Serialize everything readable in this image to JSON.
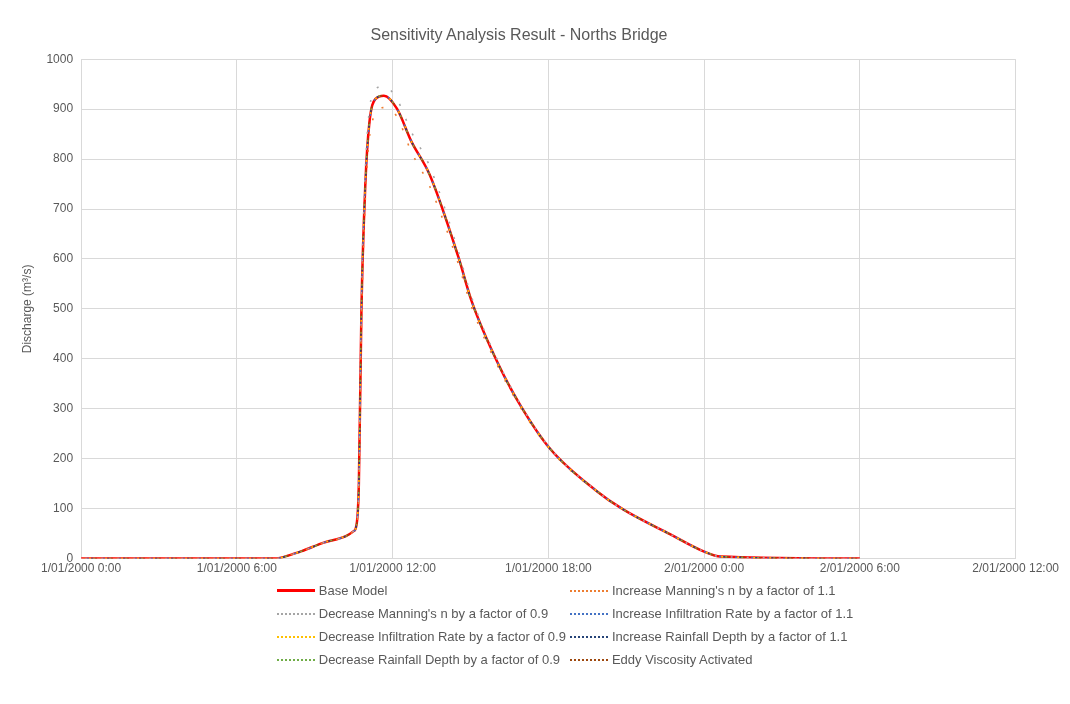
{
  "chart_data": {
    "type": "line",
    "title": "Sensitivity Analysis Result - Norths Bridge",
    "ylabel": "Discharge (m³/s)",
    "x": [
      "2000-01-01T00:00",
      "2000-01-01T07:27",
      "2000-01-01T08:06",
      "2000-01-01T08:30",
      "2000-01-01T09:21",
      "2000-01-01T10:12",
      "2000-01-01T10:30",
      "2000-01-01T10:36",
      "2000-01-01T10:42",
      "2000-01-01T10:48",
      "2000-01-01T10:57",
      "2000-01-01T11:06",
      "2000-01-01T11:20",
      "2000-01-01T11:40",
      "2000-01-01T12:10",
      "2000-01-01T12:43",
      "2000-01-01T13:26",
      "2000-01-01T14:32",
      "2000-01-01T15:02",
      "2000-01-01T16:05",
      "2000-01-01T16:56",
      "2000-01-01T18:04",
      "2000-01-01T19:52",
      "2000-01-01T20:50",
      "2000-01-01T22:41",
      "2000-01-02T00:00",
      "2000-01-02T00:38",
      "2000-01-02T06:00"
    ],
    "xlim": [
      "2000-01-01T00:00",
      "2000-01-02T12:00"
    ],
    "xticks": [
      {
        "value": "2000-01-01T00:00",
        "label": "1/01/2000 0:00"
      },
      {
        "value": "2000-01-01T06:00",
        "label": "1/01/2000 6:00"
      },
      {
        "value": "2000-01-01T12:00",
        "label": "1/01/2000 12:00"
      },
      {
        "value": "2000-01-01T18:00",
        "label": "1/01/2000 18:00"
      },
      {
        "value": "2000-01-02T00:00",
        "label": "2/01/2000 0:00"
      },
      {
        "value": "2000-01-02T06:00",
        "label": "2/01/2000 6:00"
      },
      {
        "value": "2000-01-02T12:00",
        "label": "2/01/2000 12:00"
      }
    ],
    "ylim": [
      0,
      1000
    ],
    "yticks": [
      0,
      100,
      200,
      300,
      400,
      500,
      600,
      700,
      800,
      900,
      1000
    ],
    "grid": true,
    "legend": "bottom",
    "marker": "none",
    "series": [
      {
        "name": "Base Model",
        "color": "#ff0000",
        "line_style": "solid",
        "values": [
          0,
          0,
          8,
          15,
          32,
          45,
          55,
          65,
          150,
          500,
          750,
          870,
          920,
          927,
          901,
          836,
          768,
          604,
          517,
          388,
          306,
          220,
          135,
          100,
          49,
          14,
          4,
          0
        ]
      },
      {
        "name": "Increase Manning's n by a factor of 1.1",
        "color": "#ed7d31",
        "line_style": "dotted",
        "values": [
          0,
          0,
          8,
          15,
          32,
          45,
          55,
          65,
          140,
          470,
          720,
          840,
          890,
          903,
          885,
          815,
          745,
          590,
          505,
          382,
          302,
          218,
          134,
          100,
          49,
          14,
          4,
          0
        ]
      },
      {
        "name": "Decrease Manning's n by a factor of 0.9",
        "color": "#a5a5a5",
        "line_style": "dotted",
        "values": [
          0,
          0,
          8,
          15,
          32,
          45,
          55,
          65,
          155,
          520,
          780,
          895,
          940,
          946,
          920,
          855,
          785,
          615,
          525,
          392,
          308,
          221,
          135,
          100,
          49,
          14,
          4,
          0
        ]
      },
      {
        "name": "Increase Infiltration Rate by a factor of 1.1",
        "color": "#4472c4",
        "line_style": "dotted",
        "values": [
          0,
          0,
          8,
          15,
          32,
          45,
          55,
          65,
          150,
          500,
          750,
          870,
          920,
          927,
          901,
          836,
          768,
          604,
          517,
          388,
          306,
          220,
          135,
          100,
          49,
          14,
          4,
          0
        ]
      },
      {
        "name": "Decrease Infiltration Rate by a factor of 0.9",
        "color": "#ffc000",
        "line_style": "dotted",
        "values": [
          0,
          0,
          8,
          15,
          32,
          45,
          55,
          65,
          150,
          500,
          750,
          870,
          920,
          927,
          901,
          836,
          768,
          604,
          517,
          388,
          306,
          220,
          135,
          100,
          49,
          14,
          4,
          0
        ]
      },
      {
        "name": "Increase Rainfall Depth by a factor of 1.1",
        "color": "#264478",
        "line_style": "dotted",
        "values": [
          0,
          0,
          8,
          15,
          32,
          45,
          55,
          65,
          150,
          500,
          750,
          870,
          920,
          927,
          901,
          836,
          768,
          604,
          517,
          388,
          306,
          220,
          135,
          100,
          49,
          14,
          4,
          0
        ]
      },
      {
        "name": "Decrease Rainfall Depth by a factor of 0.9",
        "color": "#70ad47",
        "line_style": "dotted",
        "values": [
          0,
          0,
          8,
          15,
          32,
          45,
          55,
          65,
          150,
          500,
          750,
          870,
          920,
          927,
          901,
          836,
          768,
          604,
          517,
          388,
          306,
          220,
          135,
          100,
          49,
          14,
          4,
          0
        ]
      },
      {
        "name": "Eddy Viscosity Activated",
        "color": "#9e480e",
        "line_style": "dotted",
        "values": [
          0,
          0,
          8,
          15,
          32,
          45,
          55,
          65,
          150,
          500,
          750,
          870,
          920,
          927,
          901,
          836,
          768,
          604,
          517,
          388,
          306,
          220,
          135,
          100,
          49,
          14,
          4,
          0
        ]
      }
    ]
  }
}
